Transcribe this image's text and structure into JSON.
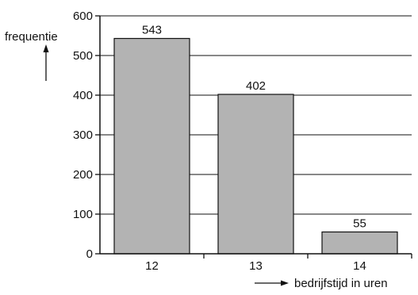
{
  "chart_data": {
    "type": "bar",
    "categories": [
      "12",
      "13",
      "14"
    ],
    "values": [
      543,
      402,
      55
    ],
    "data_labels": [
      "543",
      "402",
      "55"
    ],
    "title": "",
    "ylabel": "frequentie",
    "xlabel": "bedrijfstijd in uren",
    "ylim": [
      0,
      600
    ],
    "yticks": [
      0,
      100,
      200,
      300,
      400,
      500,
      600
    ],
    "grid": true,
    "bar_color": "#b3b3b3",
    "edge_color": "#111111",
    "legend": "none"
  }
}
